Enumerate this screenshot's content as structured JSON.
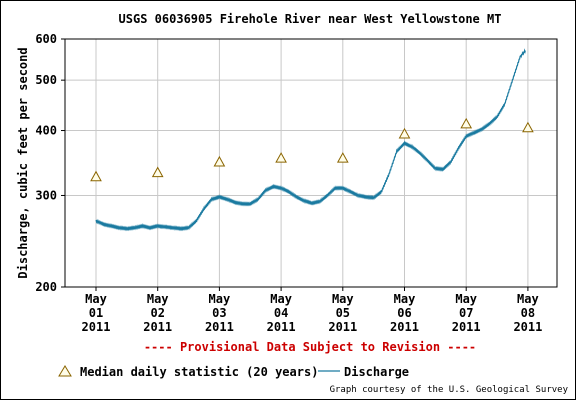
{
  "chart_data": {
    "type": "line",
    "title": "USGS 06036905 Firehole River near West Yellowstone MT",
    "ylabel": "Discharge, cubic feet per second",
    "xlabel": "",
    "y_scale": "log",
    "ylim": [
      200,
      600
    ],
    "y_ticks": [
      {
        "value": 200,
        "label": "200"
      },
      {
        "value": 300,
        "label": "300"
      },
      {
        "value": 400,
        "label": "400"
      },
      {
        "value": 500,
        "label": "500"
      },
      {
        "value": 600,
        "label": "600"
      }
    ],
    "x_ticks": [
      {
        "line1": "May",
        "line2": "01",
        "line3": "2011"
      },
      {
        "line1": "May",
        "line2": "02",
        "line3": "2011"
      },
      {
        "line1": "May",
        "line2": "03",
        "line3": "2011"
      },
      {
        "line1": "May",
        "line2": "04",
        "line3": "2011"
      },
      {
        "line1": "May",
        "line2": "05",
        "line3": "2011"
      },
      {
        "line1": "May",
        "line2": "06",
        "line3": "2011"
      },
      {
        "line1": "May",
        "line2": "07",
        "line3": "2011"
      },
      {
        "line1": "May",
        "line2": "08",
        "line3": "2011"
      }
    ],
    "grid": true,
    "series": [
      {
        "name": "Discharge",
        "color": "#1a7aa0",
        "points": [
          [
            "2011-05-01 00:00",
            268
          ],
          [
            "2011-05-01 03:00",
            264
          ],
          [
            "2011-05-01 06:00",
            262
          ],
          [
            "2011-05-01 09:00",
            260
          ],
          [
            "2011-05-01 12:00",
            259
          ],
          [
            "2011-05-01 15:00",
            260
          ],
          [
            "2011-05-01 18:00",
            262
          ],
          [
            "2011-05-01 21:00",
            260
          ],
          [
            "2011-05-02 00:00",
            262
          ],
          [
            "2011-05-02 03:00",
            261
          ],
          [
            "2011-05-02 06:00",
            260
          ],
          [
            "2011-05-02 09:00",
            259
          ],
          [
            "2011-05-02 12:00",
            260
          ],
          [
            "2011-05-02 15:00",
            268
          ],
          [
            "2011-05-02 18:00",
            283
          ],
          [
            "2011-05-02 21:00",
            295
          ],
          [
            "2011-05-03 00:00",
            298
          ],
          [
            "2011-05-03 03:00",
            295
          ],
          [
            "2011-05-03 06:00",
            291
          ],
          [
            "2011-05-03 09:00",
            289
          ],
          [
            "2011-05-03 12:00",
            289
          ],
          [
            "2011-05-03 15:00",
            295
          ],
          [
            "2011-05-03 18:00",
            307
          ],
          [
            "2011-05-03 21:00",
            312
          ],
          [
            "2011-05-04 00:00",
            310
          ],
          [
            "2011-05-04 03:00",
            305
          ],
          [
            "2011-05-04 06:00",
            298
          ],
          [
            "2011-05-04 09:00",
            293
          ],
          [
            "2011-05-04 12:00",
            290
          ],
          [
            "2011-05-04 15:00",
            292
          ],
          [
            "2011-05-04 18:00",
            300
          ],
          [
            "2011-05-04 21:00",
            310
          ],
          [
            "2011-05-05 00:00",
            310
          ],
          [
            "2011-05-05 03:00",
            305
          ],
          [
            "2011-05-05 06:00",
            300
          ],
          [
            "2011-05-05 09:00",
            298
          ],
          [
            "2011-05-05 12:00",
            297
          ],
          [
            "2011-05-05 15:00",
            305
          ],
          [
            "2011-05-05 18:00",
            330
          ],
          [
            "2011-05-05 21:00",
            365
          ],
          [
            "2011-05-06 00:00",
            378
          ],
          [
            "2011-05-06 03:00",
            372
          ],
          [
            "2011-05-06 06:00",
            362
          ],
          [
            "2011-05-06 09:00",
            350
          ],
          [
            "2011-05-06 12:00",
            338
          ],
          [
            "2011-05-06 15:00",
            337
          ],
          [
            "2011-05-06 18:00",
            348
          ],
          [
            "2011-05-06 21:00",
            370
          ],
          [
            "2011-05-07 00:00",
            390
          ],
          [
            "2011-05-07 03:00",
            396
          ],
          [
            "2011-05-07 06:00",
            402
          ],
          [
            "2011-05-07 09:00",
            412
          ],
          [
            "2011-05-07 12:00",
            425
          ],
          [
            "2011-05-07 15:00",
            450
          ],
          [
            "2011-05-07 18:00",
            500
          ],
          [
            "2011-05-07 21:00",
            555
          ],
          [
            "2011-05-07 23:00",
            570
          ]
        ]
      },
      {
        "name": "Median daily statistic (20 years)",
        "color": "#8a6400",
        "marker": "triangle",
        "points": [
          [
            "2011-05-01 00:00",
            326
          ],
          [
            "2011-05-02 00:00",
            332
          ],
          [
            "2011-05-03 00:00",
            348
          ],
          [
            "2011-05-04 00:00",
            354
          ],
          [
            "2011-05-05 00:00",
            354
          ],
          [
            "2011-05-06 00:00",
            394
          ],
          [
            "2011-05-07 00:00",
            412
          ],
          [
            "2011-05-08 00:00",
            405
          ]
        ]
      }
    ],
    "subtitle": "---- Provisional Data Subject to Revision ----",
    "legend": {
      "placement": "bottom",
      "median_label": "Median daily statistic (20 years)",
      "discharge_label": "Discharge"
    },
    "credit": "Graph courtesy of the U.S. Geological Survey",
    "colors": {
      "grid": "#c8c8c8",
      "provisional": "#cc0000",
      "axis": "#000000"
    }
  }
}
